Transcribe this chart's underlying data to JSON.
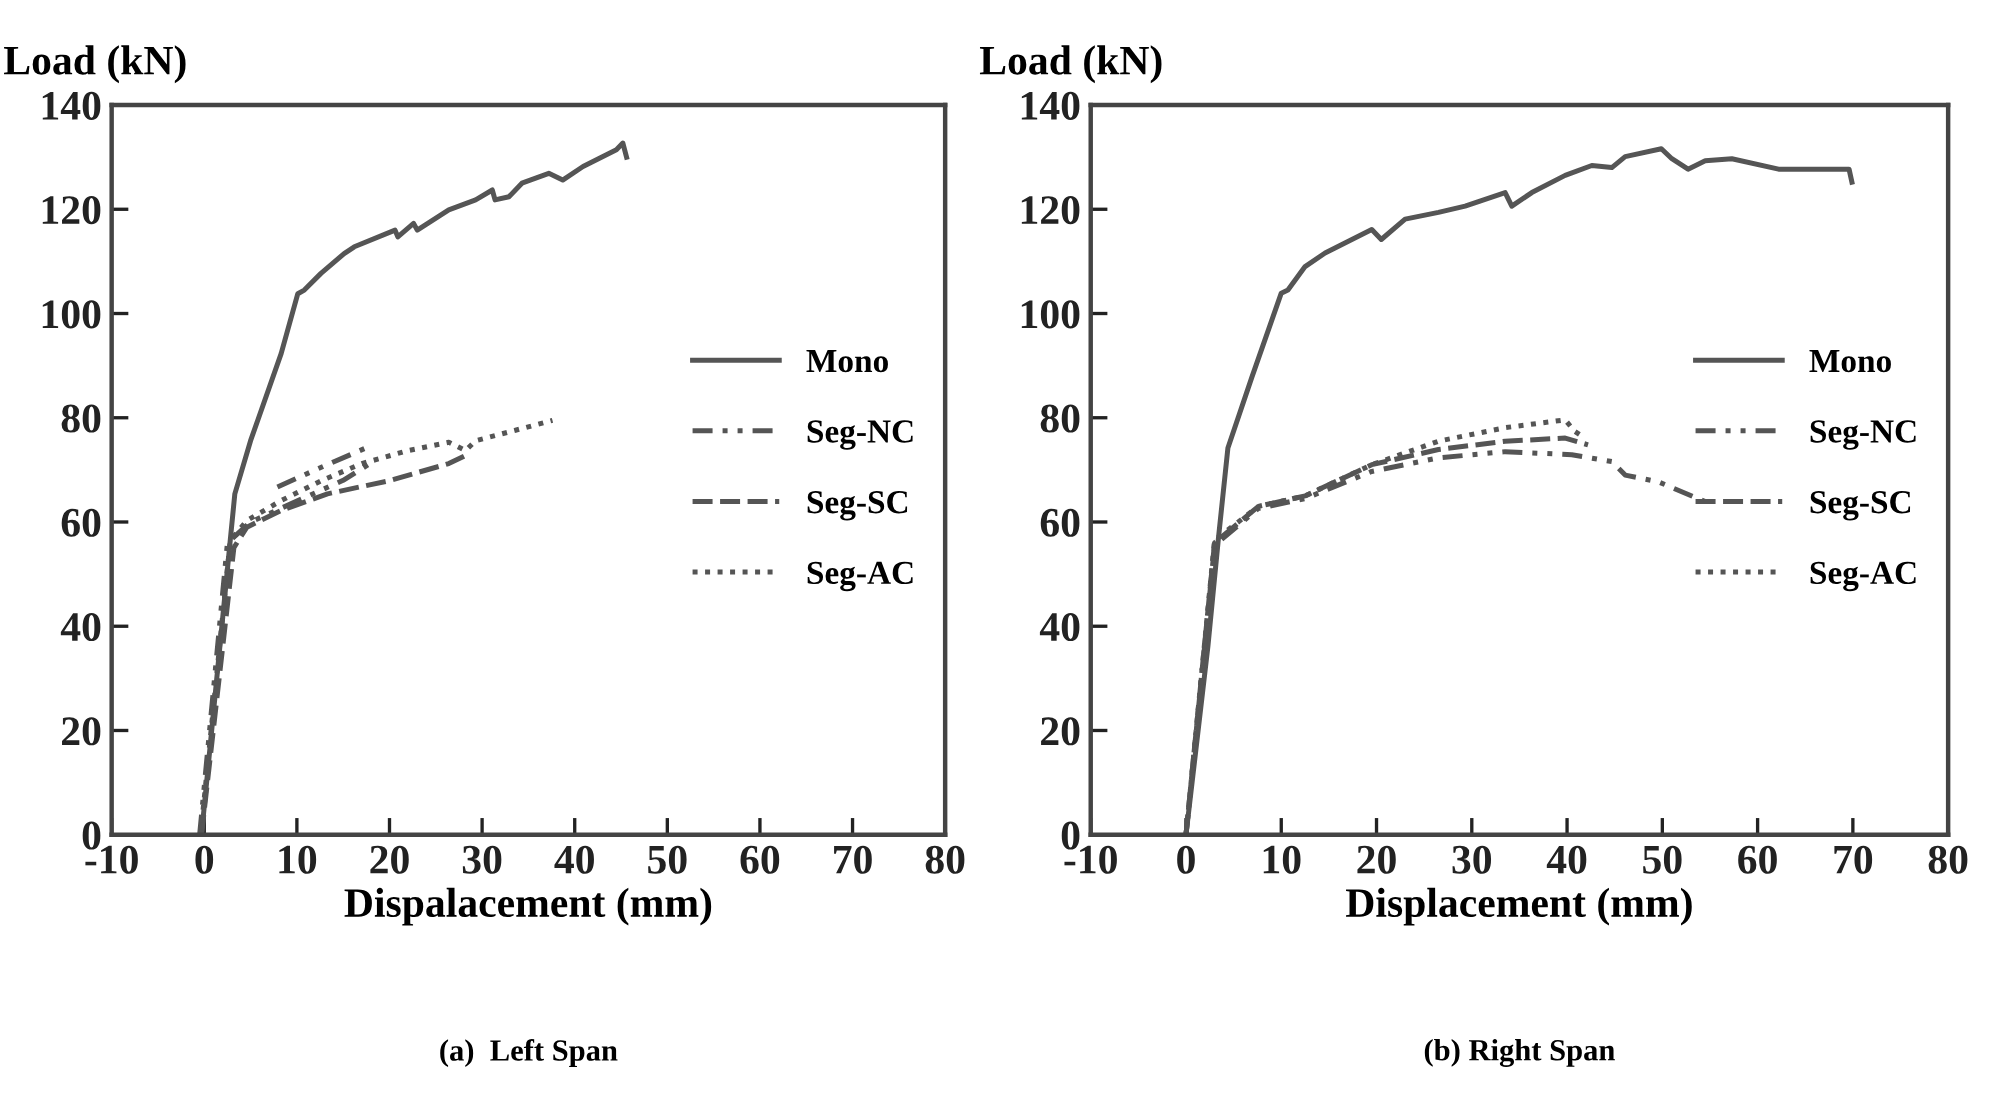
{
  "chart_data": [
    {
      "type": "line",
      "title": "(a)  Left Span",
      "xlabel": "Dispalacement (mm)",
      "ylabel": "Load (kN)",
      "xlim": [
        -10,
        80
      ],
      "ylim": [
        0,
        140
      ],
      "xticks": [
        -10,
        0,
        10,
        20,
        30,
        40,
        50,
        60,
        70,
        80
      ],
      "yticks": [
        0,
        20,
        40,
        60,
        80,
        100,
        120,
        140
      ],
      "grid": false,
      "legend": "right",
      "series": [
        {
          "name": "Mono",
          "color": "#555555",
          "line_style": "solid",
          "x": [
            -0.3,
            2.8,
            3.3,
            5,
            8.3,
            10.1,
            10.8,
            12.6,
            15.1,
            16.2,
            20.6,
            20.9,
            22.6,
            23,
            26.4,
            29.3,
            31.1,
            31.4,
            32.9,
            34.3,
            37.2,
            38.7,
            40.9,
            44.5,
            45.2,
            45.6
          ],
          "values": [
            0,
            56.4,
            65.4,
            75.6,
            92.3,
            103.8,
            104.5,
            107.7,
            111.5,
            112.8,
            116,
            114.7,
            117.3,
            116,
            119.9,
            121.8,
            123.7,
            121.8,
            122.4,
            125,
            126.9,
            125.6,
            128.2,
            131.4,
            132.7,
            130
          ]
        },
        {
          "name": "Seg-NC",
          "color": "#555555",
          "line_style": "dashdotdot",
          "x": [
            -0.5,
            2.5,
            5,
            10,
            15,
            17.7,
            null,
            7.9,
            12,
            17.7
          ],
          "values": [
            0,
            56,
            60,
            64,
            68,
            71,
            null,
            66.7,
            70,
            74.4
          ]
        },
        {
          "name": "Seg-SC",
          "color": "#555555",
          "line_style": "dashed",
          "x": [
            -0.3,
            3.2,
            4.6,
            8.3,
            13.3,
            19.9,
            26.4,
            28.6
          ],
          "values": [
            0,
            55.1,
            59,
            62.2,
            65.4,
            67.9,
            71.2,
            73.1
          ]
        },
        {
          "name": "Seg-AC",
          "color": "#555555",
          "line_style": "dotted",
          "x": [
            -0.4,
            2.8,
            4.6,
            8.3,
            12.6,
            17,
            22,
            26.4,
            28.2,
            29.3,
            33.6,
            37.6
          ],
          "values": [
            0,
            56.4,
            60.3,
            64.1,
            67.9,
            71.2,
            73.7,
            75.3,
            73.7,
            75.6,
            77.6,
            79.5
          ]
        }
      ]
    },
    {
      "type": "line",
      "title": "(b) Right Span",
      "xlabel": "Displacement (mm)",
      "ylabel": "Load (kN)",
      "xlim": [
        -10,
        80
      ],
      "ylim": [
        0,
        140
      ],
      "xticks": [
        -10,
        0,
        10,
        20,
        30,
        40,
        50,
        60,
        70,
        80
      ],
      "yticks": [
        0,
        20,
        40,
        60,
        80,
        100,
        120,
        140
      ],
      "grid": false,
      "legend": "right",
      "series": [
        {
          "name": "Mono",
          "color": "#555555",
          "line_style": "solid",
          "x": [
            0,
            2.3,
            3.4,
            4.4,
            6.9,
            10,
            10.7,
            12.5,
            14.6,
            19.5,
            20.5,
            23,
            26.5,
            29.3,
            33.5,
            34.2,
            36.3,
            39.8,
            42.6,
            44.7,
            46.1,
            49.9,
            51,
            52.7,
            54.5,
            57.3,
            62.2,
            69.6,
            69.9
          ],
          "values": [
            0,
            36.1,
            56.8,
            74.2,
            87.7,
            103.9,
            104.5,
            109,
            111.6,
            116.1,
            114.2,
            118.1,
            119.4,
            120.6,
            123.2,
            120.6,
            123.2,
            126.5,
            128.4,
            128,
            130.1,
            131.6,
            129.7,
            127.7,
            129.3,
            129.7,
            127.7,
            127.7,
            125.2
          ]
        },
        {
          "name": "Seg-NC",
          "color": "#555555",
          "line_style": "dashdotdot",
          "x": [
            0,
            3,
            7.6,
            12.5,
            19.5,
            26.5,
            33.5,
            40.5,
            44.7,
            46.1,
            49.6,
            54.5
          ],
          "values": [
            0,
            55.5,
            62.6,
            64.5,
            69.7,
            72.3,
            73.5,
            72.9,
            71.6,
            69,
            67.7,
            63.9
          ]
        },
        {
          "name": "Seg-SC",
          "color": "#555555",
          "line_style": "dashed",
          "x": [
            0,
            3,
            7.6,
            12.5,
            19.5,
            26.5,
            33.5,
            39.8,
            42.2
          ],
          "values": [
            0,
            56,
            63,
            65,
            71,
            73.9,
            75.5,
            76.1,
            74.8
          ]
        },
        {
          "name": "Seg-AC",
          "color": "#555555",
          "line_style": "dotted",
          "x": [
            0,
            3,
            7.6,
            12.5,
            19.5,
            26.5,
            33.5,
            39.8,
            40.8,
            41.9
          ],
          "values": [
            0,
            56.5,
            63,
            65,
            71,
            75.5,
            78.1,
            79.6,
            77.4,
            76.1
          ]
        }
      ]
    }
  ]
}
